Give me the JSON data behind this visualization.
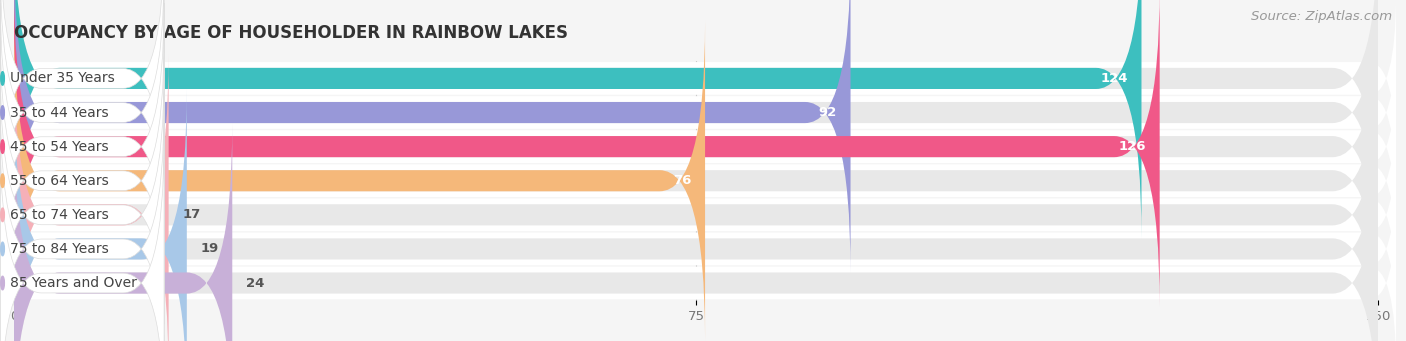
{
  "title": "OCCUPANCY BY AGE OF HOUSEHOLDER IN RAINBOW LAKES",
  "source": "Source: ZipAtlas.com",
  "categories": [
    "Under 35 Years",
    "35 to 44 Years",
    "45 to 54 Years",
    "55 to 64 Years",
    "65 to 74 Years",
    "75 to 84 Years",
    "85 Years and Over"
  ],
  "values": [
    124,
    92,
    126,
    76,
    17,
    19,
    24
  ],
  "bar_colors": [
    "#3dbfbf",
    "#9898d8",
    "#f05888",
    "#f5b87a",
    "#f5b0b8",
    "#a8c8e8",
    "#c8b0d8"
  ],
  "bar_bg_color": "#e8e8e8",
  "xlim": [
    0,
    150
  ],
  "xticks": [
    0,
    75,
    150
  ],
  "bar_height": 0.62,
  "bg_color": "#f5f5f5",
  "row_bg_color": "#ffffff",
  "title_fontsize": 12,
  "label_fontsize": 10,
  "value_fontsize": 9.5,
  "source_fontsize": 9.5,
  "label_pill_color": "#ffffff",
  "value_threshold": 50
}
